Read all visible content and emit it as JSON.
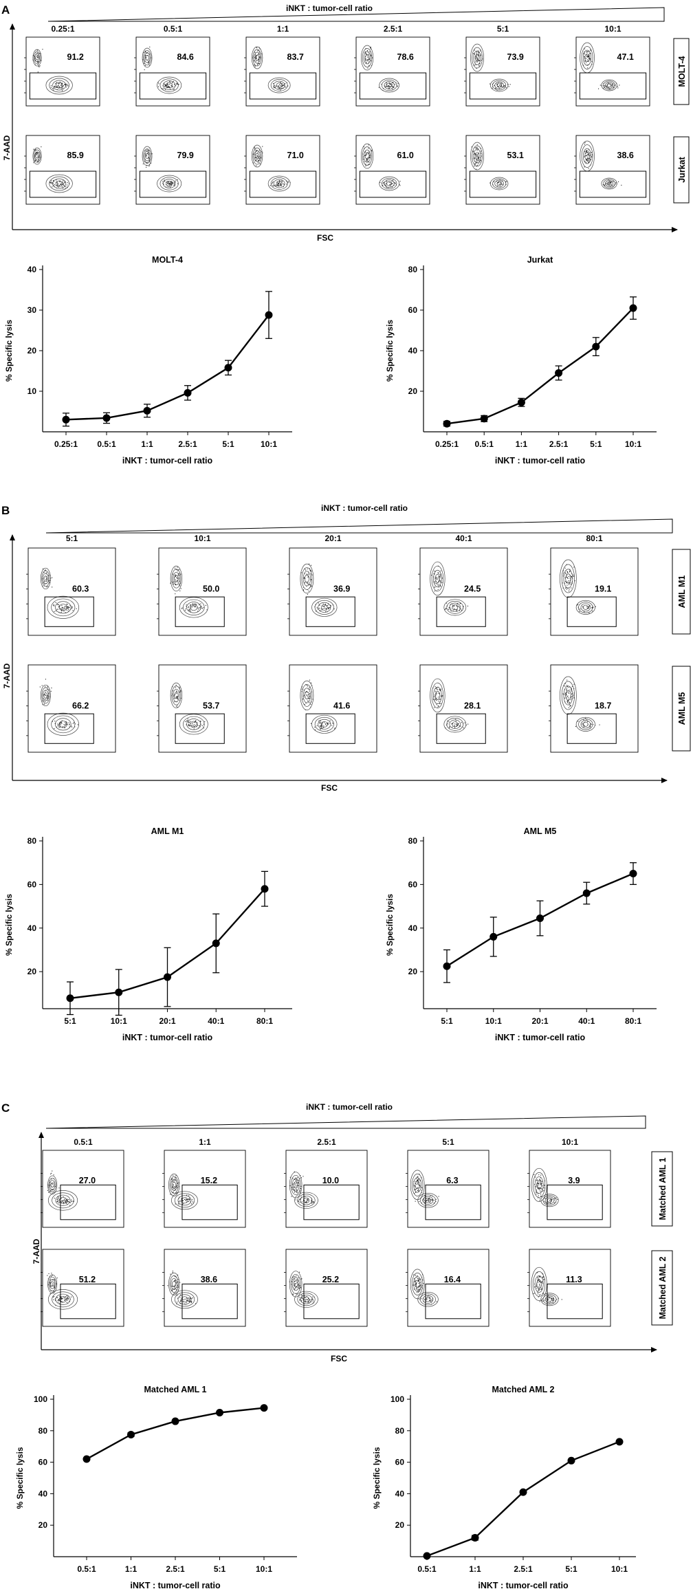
{
  "panels": [
    {
      "letter": "A",
      "ratio_title": "iNKT : tumor-cell ratio",
      "y_axis_label": "7-AAD",
      "x_axis_label": "FSC",
      "ratios": [
        "0.25:1",
        "0.5:1",
        "1:1",
        "2.5:1",
        "5:1",
        "10:1"
      ],
      "rows": [
        {
          "label": "MOLT-4",
          "values": [
            "91.2",
            "84.6",
            "83.7",
            "78.6",
            "73.9",
            "47.1"
          ]
        },
        {
          "label": "Jurkat",
          "values": [
            "85.9",
            "79.9",
            "71.0",
            "61.0",
            "53.1",
            "38.6"
          ]
        }
      ]
    },
    {
      "letter": "B",
      "ratio_title": "iNKT : tumor-cell ratio",
      "y_axis_label": "7-AAD",
      "x_axis_label": "FSC",
      "ratios": [
        "5:1",
        "10:1",
        "20:1",
        "40:1",
        "80:1"
      ],
      "rows": [
        {
          "label": "AML M1",
          "values": [
            "60.3",
            "50.0",
            "36.9",
            "24.5",
            "19.1"
          ]
        },
        {
          "label": "AML M5",
          "values": [
            "66.2",
            "53.7",
            "41.6",
            "28.1",
            "18.7"
          ]
        }
      ]
    },
    {
      "letter": "C",
      "ratio_title": "iNKT : tumor-cell ratio",
      "y_axis_label": "7-AAD",
      "x_axis_label": "FSC",
      "ratios": [
        "0.5:1",
        "1:1",
        "2.5:1",
        "5:1",
        "10:1"
      ],
      "rows": [
        {
          "label": "Matched AML 1",
          "values": [
            "27.0",
            "15.2",
            "10.0",
            "6.3",
            "3.9"
          ]
        },
        {
          "label": "Matched AML 2",
          "values": [
            "51.2",
            "38.6",
            "25.2",
            "16.4",
            "11.3"
          ]
        }
      ]
    }
  ],
  "chart_data": [
    {
      "type": "line",
      "title": "MOLT-4",
      "xlabel": "iNKT : tumor-cell ratio",
      "ylabel": "% Specific lysis",
      "categories": [
        "0.25:1",
        "0.5:1",
        "1:1",
        "2.5:1",
        "5:1",
        "10:1"
      ],
      "values": [
        3.0,
        3.4,
        5.2,
        9.6,
        15.8,
        28.8
      ],
      "errors": [
        1.6,
        1.3,
        1.6,
        1.8,
        1.8,
        5.8
      ],
      "ylim": [
        0,
        40
      ],
      "yticks": [
        10,
        20,
        30,
        40
      ]
    },
    {
      "type": "line",
      "title": "Jurkat",
      "xlabel": "iNKT : tumor-cell ratio",
      "ylabel": "% Specific lysis",
      "categories": [
        "0.25:1",
        "0.5:1",
        "1:1",
        "2.5:1",
        "5:1",
        "10:1"
      ],
      "values": [
        4.0,
        6.5,
        14.5,
        29.0,
        42.0,
        61.0
      ],
      "errors": [
        1.2,
        1.5,
        2.0,
        3.5,
        4.5,
        5.5
      ],
      "ylim": [
        0,
        80
      ],
      "yticks": [
        20,
        40,
        60,
        80
      ]
    },
    {
      "type": "line",
      "title": "AML M1",
      "xlabel": "iNKT : tumor-cell ratio",
      "ylabel": "% Specific lysis",
      "categories": [
        "5:1",
        "10:1",
        "20:1",
        "40:1",
        "80:1"
      ],
      "values": [
        7.8,
        10.5,
        17.5,
        33.0,
        58.0
      ],
      "errors": [
        7.5,
        10.5,
        13.5,
        13.5,
        8.0
      ],
      "ylim": [
        3,
        80
      ],
      "yticks": [
        20,
        40,
        60,
        80
      ]
    },
    {
      "type": "line",
      "title": "AML M5",
      "xlabel": "iNKT : tumor-cell ratio",
      "ylabel": "% Specific lysis",
      "categories": [
        "5:1",
        "10:1",
        "20:1",
        "40:1",
        "80:1"
      ],
      "values": [
        22.5,
        36.0,
        44.5,
        56.0,
        65.0
      ],
      "errors": [
        7.5,
        9.0,
        8.0,
        5.0,
        5.0
      ],
      "ylim": [
        3,
        80
      ],
      "yticks": [
        20,
        40,
        60,
        80
      ]
    },
    {
      "type": "line",
      "title": "Matched AML 1",
      "xlabel": "iNKT : tumor-cell ratio",
      "ylabel": "% Specific lysis",
      "categories": [
        "0.5:1",
        "1:1",
        "2.5:1",
        "5:1",
        "10:1"
      ],
      "values": [
        62.0,
        77.5,
        86.0,
        91.5,
        94.5
      ],
      "errors": [
        0,
        1.2,
        0,
        0,
        0
      ],
      "ylim": [
        0,
        100
      ],
      "yticks": [
        20,
        40,
        60,
        80,
        100
      ]
    },
    {
      "type": "line",
      "title": "Matched AML 2",
      "xlabel": "iNKT : tumor-cell ratio",
      "ylabel": "% Specific lysis",
      "categories": [
        "0.5:1",
        "1:1",
        "2.5:1",
        "5:1",
        "10:1"
      ],
      "values": [
        0.5,
        12.0,
        41.0,
        61.0,
        73.0
      ],
      "errors": [
        0,
        1.5,
        0,
        0,
        0
      ],
      "ylim": [
        0,
        100
      ],
      "yticks": [
        20,
        40,
        60,
        80,
        100
      ]
    }
  ]
}
